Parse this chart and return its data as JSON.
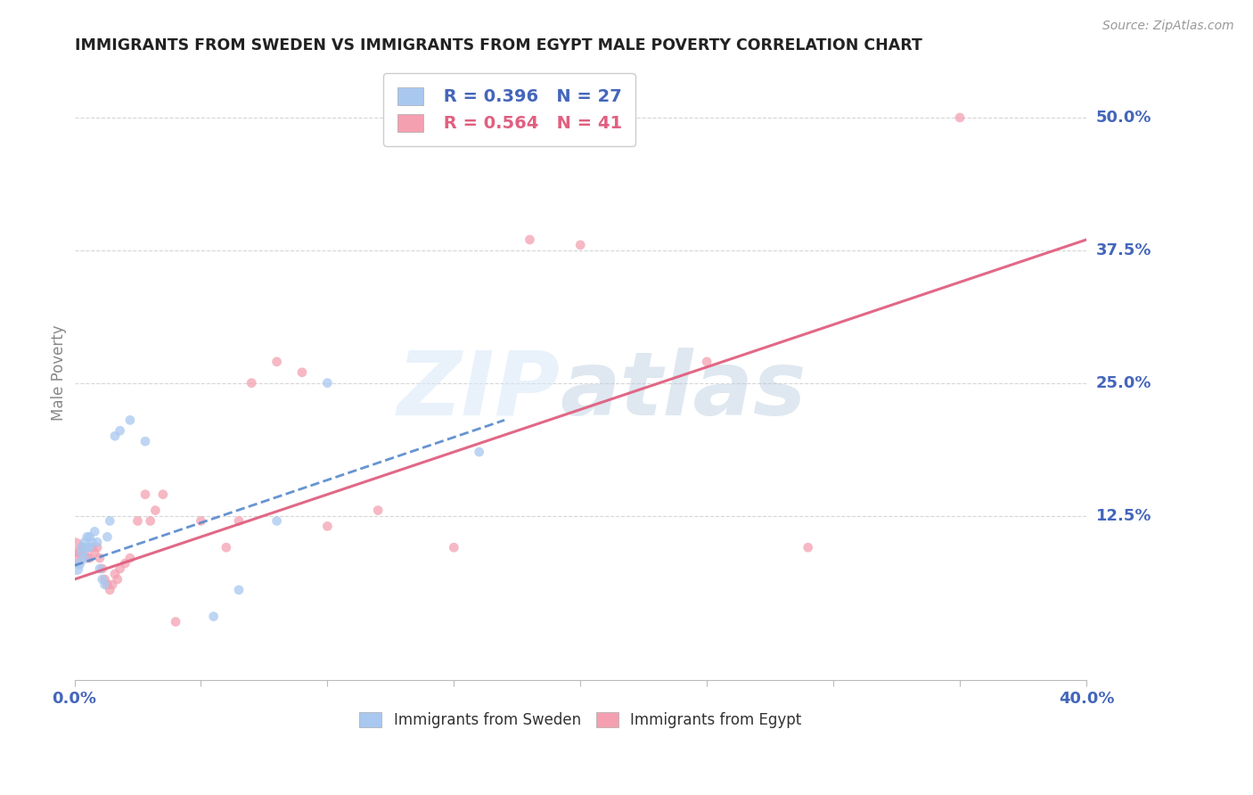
{
  "title": "IMMIGRANTS FROM SWEDEN VS IMMIGRANTS FROM EGYPT MALE POVERTY CORRELATION CHART",
  "source": "Source: ZipAtlas.com",
  "ylabel": "Male Poverty",
  "xlim": [
    0.0,
    0.4
  ],
  "ylim": [
    -0.03,
    0.55
  ],
  "ytick_positions": [
    0.125,
    0.25,
    0.375,
    0.5
  ],
  "ytick_labels": [
    "12.5%",
    "25.0%",
    "37.5%",
    "50.0%"
  ],
  "sweden_R": 0.396,
  "sweden_N": 27,
  "egypt_R": 0.564,
  "egypt_N": 41,
  "sweden_color": "#A8C8F0",
  "egypt_color": "#F4A0B0",
  "sweden_line_color": "#5588CC",
  "egypt_line_color": "#E06080",
  "grid_color": "#CCCCCC",
  "title_color": "#222222",
  "axis_label_color": "#4466BB",
  "sweden_x": [
    0.001,
    0.002,
    0.003,
    0.003,
    0.004,
    0.004,
    0.005,
    0.005,
    0.006,
    0.006,
    0.007,
    0.008,
    0.009,
    0.01,
    0.011,
    0.012,
    0.013,
    0.014,
    0.016,
    0.018,
    0.022,
    0.028,
    0.055,
    0.065,
    0.08,
    0.1,
    0.16
  ],
  "sweden_y": [
    0.075,
    0.08,
    0.09,
    0.095,
    0.085,
    0.1,
    0.095,
    0.105,
    0.095,
    0.105,
    0.1,
    0.11,
    0.1,
    0.075,
    0.065,
    0.06,
    0.105,
    0.12,
    0.2,
    0.205,
    0.215,
    0.195,
    0.03,
    0.055,
    0.12,
    0.25,
    0.185
  ],
  "sweden_sizes": [
    100,
    80,
    70,
    70,
    60,
    60,
    60,
    60,
    60,
    60,
    60,
    60,
    60,
    60,
    60,
    60,
    60,
    60,
    60,
    60,
    60,
    60,
    60,
    60,
    60,
    60,
    60
  ],
  "egypt_x": [
    0.0,
    0.001,
    0.002,
    0.003,
    0.004,
    0.005,
    0.006,
    0.007,
    0.008,
    0.009,
    0.01,
    0.011,
    0.012,
    0.013,
    0.014,
    0.015,
    0.016,
    0.017,
    0.018,
    0.02,
    0.022,
    0.025,
    0.028,
    0.03,
    0.032,
    0.035,
    0.04,
    0.05,
    0.06,
    0.065,
    0.07,
    0.08,
    0.09,
    0.1,
    0.12,
    0.15,
    0.18,
    0.2,
    0.25,
    0.29,
    0.35
  ],
  "egypt_y": [
    0.095,
    0.085,
    0.09,
    0.095,
    0.09,
    0.085,
    0.085,
    0.095,
    0.09,
    0.095,
    0.085,
    0.075,
    0.065,
    0.06,
    0.055,
    0.06,
    0.07,
    0.065,
    0.075,
    0.08,
    0.085,
    0.12,
    0.145,
    0.12,
    0.13,
    0.145,
    0.025,
    0.12,
    0.095,
    0.12,
    0.25,
    0.27,
    0.26,
    0.115,
    0.13,
    0.095,
    0.385,
    0.38,
    0.27,
    0.095,
    0.5
  ],
  "egypt_sizes": [
    250,
    80,
    70,
    60,
    60,
    60,
    60,
    60,
    60,
    60,
    60,
    60,
    60,
    60,
    60,
    60,
    60,
    60,
    60,
    60,
    60,
    60,
    60,
    60,
    60,
    60,
    60,
    60,
    60,
    60,
    60,
    60,
    60,
    60,
    60,
    60,
    60,
    60,
    60,
    60,
    60
  ],
  "sweden_line_x": [
    0.0,
    0.17
  ],
  "sweden_line_y": [
    0.078,
    0.215
  ],
  "egypt_line_x": [
    0.0,
    0.4
  ],
  "egypt_line_y": [
    0.065,
    0.385
  ]
}
